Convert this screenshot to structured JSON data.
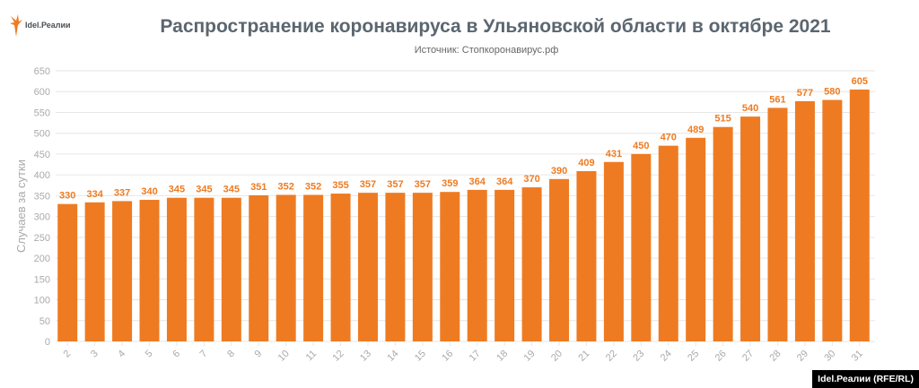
{
  "logo": {
    "text": "Idel.Реалии"
  },
  "credit": "Idel.Реалии (RFE/RL)",
  "colors": {
    "bar": "#ee7b22",
    "label": "#ee7b22",
    "grid": "#e6e6e6",
    "axis_text": "#aaaaaa"
  },
  "chart_data": {
    "type": "bar",
    "title": "Распространение коронавируса в Ульяновской области в октябре 2021",
    "subtitle": "Источник: Стопкоронавирус.рф",
    "xlabel": "",
    "ylabel": "Случаев за сутки",
    "ylim": [
      0,
      650
    ],
    "yticks": [
      0,
      50,
      100,
      150,
      200,
      250,
      300,
      350,
      400,
      450,
      500,
      550,
      600,
      650
    ],
    "grid": true,
    "categories": [
      "2",
      "3",
      "4",
      "5",
      "6",
      "7",
      "8",
      "9",
      "10",
      "11",
      "12",
      "13",
      "14",
      "15",
      "16",
      "17",
      "18",
      "19",
      "20",
      "21",
      "22",
      "23",
      "24",
      "25",
      "26",
      "27",
      "28",
      "29",
      "30",
      "31"
    ],
    "values": [
      330,
      334,
      337,
      340,
      345,
      345,
      345,
      351,
      352,
      352,
      355,
      357,
      357,
      357,
      359,
      364,
      364,
      370,
      390,
      409,
      431,
      450,
      470,
      489,
      515,
      540,
      561,
      577,
      580,
      605
    ]
  }
}
